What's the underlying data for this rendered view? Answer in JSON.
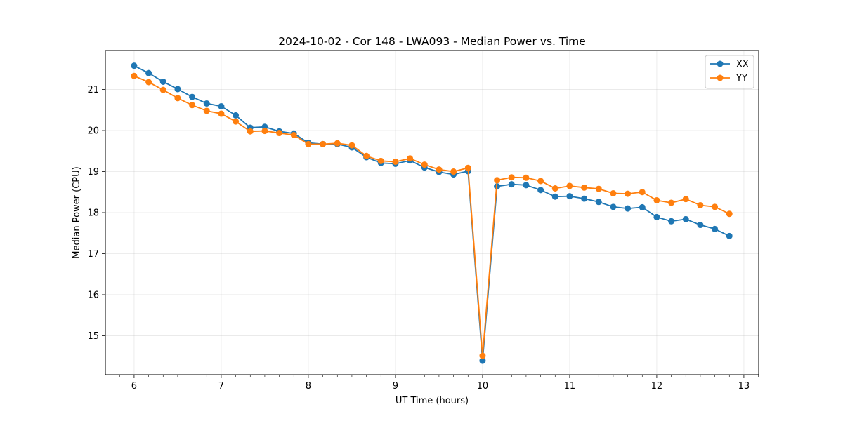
{
  "chart_data": {
    "type": "line",
    "title": "2024-10-02 - Cor 148 - LWA093 - Median Power vs. Time",
    "xlabel": "UT Time (hours)",
    "ylabel": "Median Power (CPU)",
    "xlim": [
      5.67,
      13.17
    ],
    "ylim": [
      14.05,
      21.95
    ],
    "xticks": [
      6,
      7,
      8,
      9,
      10,
      11,
      12,
      13
    ],
    "yticks": [
      15,
      16,
      17,
      18,
      19,
      20,
      21
    ],
    "grid": true,
    "legend_position": "top-right",
    "x": [
      6.0,
      6.1667,
      6.3333,
      6.5,
      6.6667,
      6.8333,
      7.0,
      7.1667,
      7.3333,
      7.5,
      7.6667,
      7.8333,
      8.0,
      8.1667,
      8.3333,
      8.5,
      8.6667,
      8.8333,
      9.0,
      9.1667,
      9.3333,
      9.5,
      9.6667,
      9.8333,
      10.0,
      10.1667,
      10.3333,
      10.5,
      10.6667,
      10.8333,
      11.0,
      11.1667,
      11.3333,
      11.5,
      11.6667,
      11.8333,
      12.0,
      12.1667,
      12.3333,
      12.5,
      12.6667,
      12.8333
    ],
    "series": [
      {
        "name": "XX",
        "color": "#1f77b4",
        "values": [
          21.58,
          21.4,
          21.19,
          21.01,
          20.82,
          20.66,
          20.59,
          20.37,
          20.07,
          20.09,
          19.98,
          19.93,
          19.7,
          19.67,
          19.67,
          19.59,
          19.35,
          19.21,
          19.19,
          19.27,
          19.1,
          18.99,
          18.93,
          19.01,
          14.39,
          18.64,
          18.69,
          18.67,
          18.55,
          18.39,
          18.4,
          18.34,
          18.26,
          18.14,
          18.1,
          18.13,
          17.89,
          17.79,
          17.84,
          17.7,
          17.6,
          17.43
        ]
      },
      {
        "name": "YY",
        "color": "#ff7f0e",
        "values": [
          21.33,
          21.18,
          20.99,
          20.79,
          20.62,
          20.48,
          20.41,
          20.22,
          19.98,
          19.99,
          19.94,
          19.89,
          19.67,
          19.67,
          19.69,
          19.64,
          19.38,
          19.26,
          19.24,
          19.32,
          19.17,
          19.05,
          19.0,
          19.09,
          14.51,
          18.79,
          18.86,
          18.85,
          18.77,
          18.59,
          18.65,
          18.61,
          18.58,
          18.47,
          18.46,
          18.5,
          18.3,
          18.24,
          18.33,
          18.18,
          18.14,
          17.97
        ]
      }
    ]
  }
}
